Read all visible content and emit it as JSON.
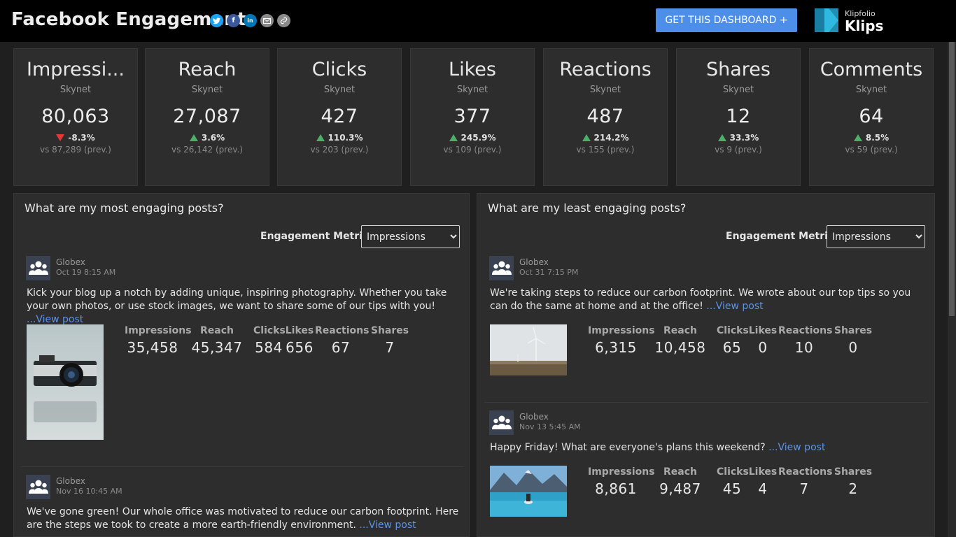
{
  "header": {
    "title": "Facebook Engagement",
    "share_icons": [
      {
        "icon": "twitter-icon",
        "glyph": "t",
        "color": "#1da1f2"
      },
      {
        "icon": "facebook-icon",
        "glyph": "f",
        "color": "#3b5998"
      },
      {
        "icon": "linkedin-icon",
        "glyph": "in",
        "color": "#0077b5"
      },
      {
        "icon": "email-icon",
        "glyph": "✉",
        "color": "#8a8a8a"
      },
      {
        "icon": "link-icon",
        "glyph": "🔗",
        "color": "#8a8a8a"
      }
    ],
    "cta_label": "GET THIS DASHBOARD +",
    "logo_small": "Klipfolio",
    "logo_big": "Klips",
    "accent": "#4d8ee8"
  },
  "kpis": [
    {
      "title": "Impressi...",
      "sub": "Skynet",
      "value": "80,063",
      "dir": "down",
      "change": "-8.3%",
      "prev": "vs 87,289 (prev.)"
    },
    {
      "title": "Reach",
      "sub": "Skynet",
      "value": "27,087",
      "dir": "up",
      "change": "3.6%",
      "prev": "vs 26,142 (prev.)"
    },
    {
      "title": "Clicks",
      "sub": "Skynet",
      "value": "427",
      "dir": "up",
      "change": "110.3%",
      "prev": "vs 203 (prev.)"
    },
    {
      "title": "Likes",
      "sub": "Skynet",
      "value": "377",
      "dir": "up",
      "change": "245.9%",
      "prev": "vs 109 (prev.)"
    },
    {
      "title": "Reactions",
      "sub": "Skynet",
      "value": "487",
      "dir": "up",
      "change": "214.2%",
      "prev": "vs 155 (prev.)"
    },
    {
      "title": "Shares",
      "sub": "Skynet",
      "value": "12",
      "dir": "up",
      "change": "33.3%",
      "prev": "vs 9 (prev.)"
    },
    {
      "title": "Comments",
      "sub": "Skynet",
      "value": "64",
      "dir": "up",
      "change": "8.5%",
      "prev": "vs 59 (prev.)"
    }
  ],
  "most": {
    "title": "What are my most engaging posts?",
    "metric_label": "Engagement Metric:",
    "metric_value": "Impressions",
    "posts": [
      {
        "author": "Globex",
        "date": "Oct 19 8:15 AM",
        "text": "Kick your blog up a notch by adding unique, inspiring photography. Whether you take your own photos, or use stock images, we want to share some of our tips with you!",
        "link": " ...View post",
        "thumb": "camera",
        "stats": [
          {
            "label": "Impressions",
            "value": "35,458"
          },
          {
            "label": "Reach",
            "value": "45,347"
          },
          {
            "label": "Clicks",
            "value": "584"
          },
          {
            "label": "Likes",
            "value": "656"
          },
          {
            "label": "Reactions",
            "value": "67"
          },
          {
            "label": "Shares",
            "value": "7"
          }
        ]
      },
      {
        "author": "Globex",
        "date": "Nov 16 10:45 AM",
        "text": "We've gone green! Our whole office was motivated to reduce our carbon footprint. Here are the steps we took to create a more earth-friendly environment.",
        "link": " ...View post"
      }
    ]
  },
  "least": {
    "title": "What are my least engaging posts?",
    "metric_label": "Engagement Metric:",
    "metric_value": "Impressions",
    "posts": [
      {
        "author": "Globex",
        "date": "Oct 31 7:15 PM",
        "text": "We're taking steps to reduce our carbon footprint. We wrote about our top tips so you can do the same at home and at the office!",
        "link": " ...View post",
        "thumb": "windmill",
        "stats": [
          {
            "label": "Impressions",
            "value": "6,315"
          },
          {
            "label": "Reach",
            "value": "10,458"
          },
          {
            "label": "Clicks",
            "value": "65"
          },
          {
            "label": "Likes",
            "value": "0"
          },
          {
            "label": "Reactions",
            "value": "10"
          },
          {
            "label": "Shares",
            "value": "0"
          }
        ]
      },
      {
        "author": "Globex",
        "date": "Nov 13 5:45 AM",
        "text": "Happy Friday! What are everyone's plans this weekend?",
        "link": " ...View post",
        "thumb": "lake",
        "stats": [
          {
            "label": "Impressions",
            "value": "8,861"
          },
          {
            "label": "Reach",
            "value": "9,487"
          },
          {
            "label": "Clicks",
            "value": "45"
          },
          {
            "label": "Likes",
            "value": "4"
          },
          {
            "label": "Reactions",
            "value": "7"
          },
          {
            "label": "Shares",
            "value": "2"
          }
        ]
      }
    ]
  }
}
